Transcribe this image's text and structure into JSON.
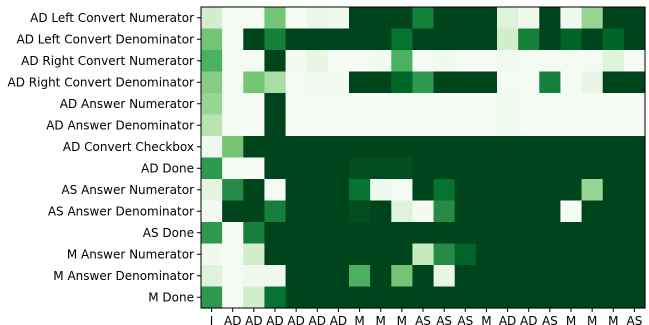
{
  "chart_data": {
    "type": "heatmap",
    "colormap": "Greens",
    "color_range": [
      0,
      1
    ],
    "grid": false,
    "legend": "none",
    "y_categories": [
      "AD Left Convert Numerator",
      "AD Left Convert Denominator",
      "AD Right Convert Numerator",
      "AD Right Convert Denominator",
      "AD Answer Numerator",
      "AD Answer Denominator",
      "AD Convert Checkbox",
      "AD Done",
      "AS Answer Numerator",
      "AS Answer Denominator",
      "AS Done",
      "M Answer Numerator",
      "M Answer Denominator",
      "M Done"
    ],
    "x_categories": [
      "I",
      "AD",
      "AD",
      "AD",
      "AD",
      "AD",
      "AD",
      "M",
      "M",
      "M",
      "AS",
      "AS",
      "AS",
      "M",
      "AD",
      "AD",
      "AS",
      "M",
      "M",
      "M",
      "AS"
    ],
    "values": [
      [
        0.2,
        0.02,
        0.02,
        0.5,
        0.02,
        0.08,
        0.05,
        1,
        1,
        1,
        0.8,
        1,
        1,
        1,
        0.15,
        0.05,
        1,
        0.05,
        0.4,
        1,
        1
      ],
      [
        0.5,
        0.02,
        1,
        0.8,
        1,
        1,
        1,
        1,
        1,
        0.85,
        1,
        1,
        1,
        1,
        0.2,
        0.8,
        1,
        0.9,
        1,
        0.9,
        1
      ],
      [
        0.6,
        0.02,
        0.02,
        1,
        0.03,
        0.1,
        0.02,
        0.02,
        0.04,
        0.6,
        0.02,
        0.05,
        0.02,
        0.02,
        0.04,
        0.02,
        0.02,
        0.02,
        0.02,
        0.15,
        0.02
      ],
      [
        0.45,
        0.02,
        0.5,
        0.35,
        0.02,
        0.04,
        0.03,
        1,
        1,
        0.9,
        0.7,
        1,
        1,
        1,
        0.02,
        0.02,
        0.8,
        0.02,
        0.1,
        1,
        1
      ],
      [
        0.4,
        0.02,
        0.02,
        1,
        0.02,
        0.02,
        0.02,
        0.02,
        0.02,
        0.02,
        0.02,
        0.02,
        0.02,
        0.02,
        0.04,
        0.02,
        0.02,
        0.02,
        0.02,
        0.02,
        0.02
      ],
      [
        0.3,
        0.02,
        0.02,
        1,
        0.02,
        0.02,
        0.02,
        0.02,
        0.02,
        0.02,
        0.02,
        0.02,
        0.02,
        0.02,
        0.04,
        0.02,
        0.02,
        0.02,
        0.02,
        0.02,
        0.02
      ],
      [
        0.05,
        0.5,
        1,
        1,
        1,
        1,
        1,
        1,
        1,
        1,
        1,
        1,
        1,
        1,
        1,
        1,
        1,
        1,
        1,
        1,
        1
      ],
      [
        0.7,
        0.02,
        0.02,
        1,
        1,
        1,
        1,
        0.97,
        0.97,
        0.97,
        1,
        1,
        1,
        1,
        1,
        1,
        1,
        1,
        1,
        1,
        1
      ],
      [
        0.12,
        0.75,
        1,
        0.02,
        1,
        1,
        1,
        0.85,
        0.05,
        0.02,
        1,
        0.85,
        1,
        1,
        1,
        1,
        1,
        1,
        0.4,
        1,
        1
      ],
      [
        0.04,
        1,
        1,
        0.8,
        1,
        1,
        1,
        0.97,
        1,
        0.15,
        0.03,
        0.75,
        1,
        1,
        1,
        1,
        1,
        0.02,
        1,
        1,
        1
      ],
      [
        0.7,
        0.02,
        0.8,
        1,
        1,
        1,
        1,
        1,
        1,
        1,
        1,
        1,
        1,
        1,
        1,
        1,
        1,
        1,
        1,
        1,
        1
      ],
      [
        0.05,
        0.02,
        0.2,
        1,
        1,
        1,
        1,
        1,
        1,
        1,
        0.25,
        0.75,
        0.9,
        1,
        1,
        1,
        1,
        1,
        1,
        1,
        1
      ],
      [
        0.15,
        0.02,
        0.05,
        0.05,
        1,
        1,
        1,
        0.6,
        1,
        0.5,
        1,
        0.1,
        1,
        1,
        1,
        1,
        1,
        1,
        1,
        1,
        1
      ],
      [
        0.7,
        0.02,
        0.2,
        0.85,
        1,
        1,
        1,
        1,
        1,
        1,
        1,
        1,
        1,
        1,
        1,
        1,
        1,
        1,
        1,
        1,
        1
      ]
    ]
  }
}
